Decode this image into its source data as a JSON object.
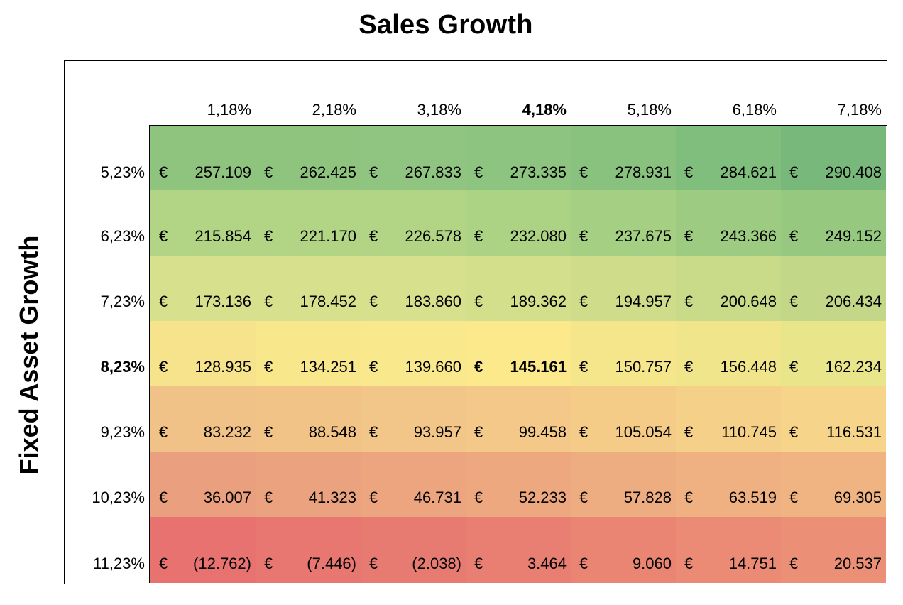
{
  "title": "Sales Growth",
  "y_label": "Fixed Asset Growth",
  "currency": "€",
  "columns": [
    {
      "label": "1,18%",
      "bold": false
    },
    {
      "label": "2,18%",
      "bold": false
    },
    {
      "label": "3,18%",
      "bold": false
    },
    {
      "label": "4,18%",
      "bold": true
    },
    {
      "label": "5,18%",
      "bold": false
    },
    {
      "label": "6,18%",
      "bold": false
    },
    {
      "label": "7,18%",
      "bold": false
    }
  ],
  "rows": [
    {
      "label": "5,23%",
      "bold": false,
      "values": [
        "257.109",
        "262.425",
        "267.833",
        "273.335",
        "278.931",
        "284.621",
        "290.408"
      ]
    },
    {
      "label": "6,23%",
      "bold": false,
      "values": [
        "215.854",
        "221.170",
        "226.578",
        "232.080",
        "237.675",
        "243.366",
        "249.152"
      ]
    },
    {
      "label": "7,23%",
      "bold": false,
      "values": [
        "173.136",
        "178.452",
        "183.860",
        "189.362",
        "194.957",
        "200.648",
        "206.434"
      ]
    },
    {
      "label": "8,23%",
      "bold": true,
      "values": [
        "128.935",
        "134.251",
        "139.660",
        "145.161",
        "150.757",
        "156.448",
        "162.234"
      ]
    },
    {
      "label": "9,23%",
      "bold": false,
      "values": [
        "83.232",
        "88.548",
        "93.957",
        "99.458",
        "105.054",
        "110.745",
        "116.531"
      ]
    },
    {
      "label": "10,23%",
      "bold": false,
      "values": [
        "36.007",
        "41.323",
        "46.731",
        "52.233",
        "57.828",
        "63.519",
        "69.305"
      ]
    },
    {
      "label": "11,23%",
      "bold": false,
      "values": [
        "(12.762)",
        "(7.446)",
        "(2.038)",
        "3.464",
        "9.060",
        "14.751",
        "20.537"
      ]
    }
  ],
  "colors": [
    [
      "#8fc47f",
      "#8fc47f",
      "#8fc580",
      "#8dc47f",
      "#88c27e",
      "#80be7d",
      "#78b87b"
    ],
    [
      "#b1d485",
      "#b1d485",
      "#b1d485",
      "#acd283",
      "#a5cf82",
      "#9dcb81",
      "#97c880"
    ],
    [
      "#d7e08c",
      "#d7e08c",
      "#d7e08c",
      "#d4df8b",
      "#cfdd8b",
      "#c9da89",
      "#c2d788"
    ],
    [
      "#f7e38c",
      "#f9e78c",
      "#fae88c",
      "#fce98c",
      "#f6e68b",
      "#f0e58b",
      "#e9e58a"
    ],
    [
      "#f0c287",
      "#f1c387",
      "#f2c688",
      "#f3c888",
      "#f4cc88",
      "#f5d089",
      "#f6d48a"
    ],
    [
      "#eaa07e",
      "#eba27f",
      "#eca57f",
      "#eda880",
      "#eeac81",
      "#efb082",
      "#f0b483"
    ],
    [
      "#e7726f",
      "#e77770",
      "#e87b71",
      "#e97f72",
      "#ea8573",
      "#eb8a75",
      "#ec8f77"
    ]
  ]
}
